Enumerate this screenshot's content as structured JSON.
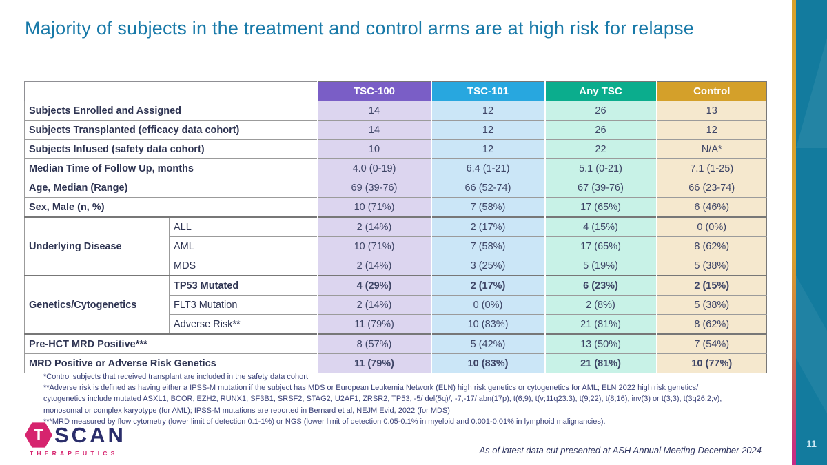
{
  "slide": {
    "title": "Majority of subjects in the treatment and control arms are at high risk for relapse",
    "page_number": "11",
    "annotation": "As of latest data cut presented at ASH Annual Meeting December 2024"
  },
  "logo": {
    "hex_letter": "T",
    "name": "SCAN",
    "subtitle": "THERAPEUTICS",
    "magenta": "#D6246E",
    "navy": "#2B2E6B"
  },
  "colors": {
    "title_text": "#1879A8",
    "side_band": "#137B9E",
    "stripe_gold": "#D9A12C",
    "stripe_magenta": "#C9307E"
  },
  "table": {
    "columns": [
      {
        "label": "TSC-100",
        "header_bg": "#7A5EC6",
        "body_bg": "#DCD5EF"
      },
      {
        "label": "TSC-101",
        "header_bg": "#28A7DF",
        "body_bg": "#CBE6F7"
      },
      {
        "label": "Any TSC",
        "header_bg": "#0BAD8D",
        "body_bg": "#C8F2E7"
      },
      {
        "label": "Control",
        "header_bg": "#D4A02A",
        "body_bg": "#F5E8CE"
      }
    ],
    "rows": [
      {
        "label": "Subjects Enrolled and Assigned",
        "values": [
          "14",
          "12",
          "26",
          "13"
        ]
      },
      {
        "label": "Subjects Transplanted (efficacy data cohort)",
        "values": [
          "14",
          "12",
          "26",
          "12"
        ]
      },
      {
        "label": "Subjects Infused (safety data cohort)",
        "values": [
          "10",
          "12",
          "22",
          "N/A*"
        ]
      },
      {
        "label": "Median Time of Follow Up, months",
        "values": [
          "4.0 (0-19)",
          "6.4 (1-21)",
          "5.1 (0-21)",
          "7.1 (1-25)"
        ]
      },
      {
        "label": "Age, Median (Range)",
        "values": [
          "69 (39-76)",
          "66 (52-74)",
          "67 (39-76)",
          "66 (23-74)"
        ]
      },
      {
        "label": "Sex, Male (n, %)",
        "values": [
          "10 (71%)",
          "7 (58%)",
          "17 (65%)",
          "6 (46%)"
        ]
      },
      {
        "group": "Underlying Disease",
        "group_span": 3,
        "sub": "ALL",
        "sep": true,
        "values": [
          "2 (14%)",
          "2 (17%)",
          "4 (15%)",
          "0 (0%)"
        ]
      },
      {
        "sub": "AML",
        "values": [
          "10 (71%)",
          "7 (58%)",
          "17 (65%)",
          "8 (62%)"
        ]
      },
      {
        "sub": "MDS",
        "values": [
          "2 (14%)",
          "3 (25%)",
          "5 (19%)",
          "5 (38%)"
        ]
      },
      {
        "group": "Genetics/Cytogenetics",
        "group_span": 3,
        "sub": "TP53 Mutated",
        "sub_bold": true,
        "values_bold": true,
        "sep": true,
        "values": [
          "4 (29%)",
          "2 (17%)",
          "6 (23%)",
          "2 (15%)"
        ]
      },
      {
        "sub": "FLT3 Mutation",
        "values": [
          "2 (14%)",
          "0 (0%)",
          "2 (8%)",
          "5 (38%)"
        ]
      },
      {
        "sub": "Adverse Risk**",
        "values": [
          "11 (79%)",
          "10 (83%)",
          "21 (81%)",
          "8 (62%)"
        ]
      },
      {
        "label": "Pre-HCT MRD Positive***",
        "sep": true,
        "values": [
          "8 (57%)",
          "5 (42%)",
          "13 (50%)",
          "7 (54%)"
        ]
      },
      {
        "label": "MRD Positive or Adverse Risk Genetics",
        "values_bold": true,
        "values": [
          "11 (79%)",
          "10 (83%)",
          "21 (81%)",
          "10 (77%)"
        ]
      }
    ]
  },
  "footnotes": {
    "lines": [
      "*Control subjects that received transplant are included in the safety data cohort",
      "**Adverse risk is defined as having either a IPSS-M mutation if the subject has MDS or European Leukemia Network (ELN) high risk genetics or cytogenetics for AML; ELN 2022 high risk genetics/",
      "cytogenetics include mutated ASXL1, BCOR, EZH2, RUNX1, SF3B1, SRSF2, STAG2, U2AF1, ZRSR2, TP53, -5/ del(5q)/, -7,-17/ abn(17p), t(6;9), t(v;11q23.3), t(9;22), t(8;16), inv(3) or t(3;3), t(3q26.2;v),",
      "monosomal or complex karyotype (for AML); IPSS-M mutations are reported in Bernard et al, NEJM Evid, 2022 (for MDS)",
      "***MRD measured by flow cytometry (lower limit of detection 0.1-1%) or NGS (lower limit of detection 0.05-0.1% in myeloid and 0.001-0.01% in lymphoid malignancies)."
    ]
  }
}
